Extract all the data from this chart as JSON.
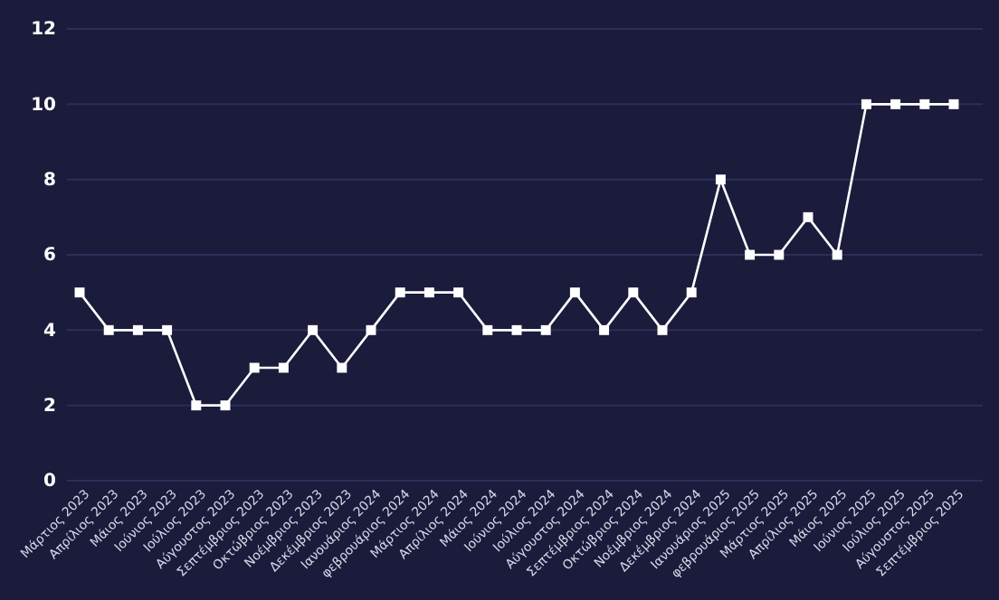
{
  "chart_data": {
    "type": "line",
    "categories": [
      "Μάρτιος 2023",
      "Απρίλιος 2023",
      "Μάιος 2023",
      "Ιούνιος 2023",
      "Ιούλιος 2023",
      "Αύγουστος 2023",
      "Σεπτέμβριος 2023",
      "Οκτώβριος 2023",
      "Νοέμβριος 2023",
      "Δεκέμβριος 2023",
      "Ιανουάριος 2024",
      "φεβρουάριος 2024",
      "Μάρτιος 2024",
      "Απρίλιος 2024",
      "Μάιος 2024",
      "Ιούνιος 2024",
      "Ιούλιος 2024",
      "Αύγουστος 2024",
      "Σεπτέμβριος 2024",
      "Οκτώβριος 2024",
      "Νοέμβριος 2024",
      "Δεκέμβριος 2024",
      "Ιανουάριος 2025",
      "φεβρουάριος 2025",
      "Μάρτιος 2025",
      "Απρίλιος 2025",
      "Μάιος 2025",
      "Ιούνιος 2025",
      "Ιούλιος 2025",
      "Αύγουστος 2025",
      "Σεπτέμβριος 2025"
    ],
    "series": [
      {
        "color": "#ffffff",
        "values": [
          5,
          4,
          4,
          4,
          2,
          2,
          3,
          3,
          4,
          3,
          4,
          5,
          5,
          5,
          4,
          4,
          4,
          5,
          4,
          5,
          4,
          5,
          8,
          6,
          6,
          7,
          6,
          10,
          10,
          10,
          10
        ]
      }
    ],
    "ylim": [
      0,
      12
    ],
    "yticks": [
      0,
      2,
      4,
      6,
      8,
      10,
      12
    ],
    "grid": "y",
    "marker": "square",
    "line_style": "solid"
  }
}
